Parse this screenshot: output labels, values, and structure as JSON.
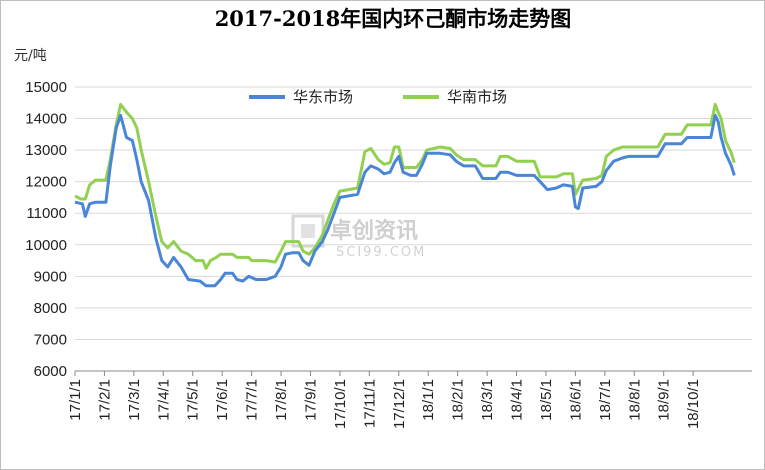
{
  "chart_data": {
    "type": "line",
    "title": "2017-2018年国内环己酮市场走势图",
    "unit_label": "元/吨",
    "ylim": [
      6000,
      15000
    ],
    "yticks": [
      6000,
      7000,
      8000,
      9000,
      10000,
      11000,
      12000,
      13000,
      14000,
      15000
    ],
    "xlim": [
      0,
      23
    ],
    "xtick_labels": [
      "17/1/1",
      "17/2/1",
      "17/3/1",
      "17/4/1",
      "17/5/1",
      "17/6/1",
      "17/7/1",
      "17/8/1",
      "17/9/1",
      "17/10/1",
      "17/11/1",
      "17/12/1",
      "18/1/1",
      "18/2/1",
      "18/3/1",
      "18/4/1",
      "18/5/1",
      "18/6/1",
      "18/7/1",
      "18/8/1",
      "18/9/1",
      "18/10/1"
    ],
    "legend_position": "top-center",
    "watermark": {
      "main": "卓创资讯",
      "sub": "SCI99.COM"
    },
    "series": [
      {
        "name": "华东市场",
        "color": "#4a86d8",
        "points": [
          [
            0.0,
            11350
          ],
          [
            0.25,
            11300
          ],
          [
            0.35,
            10900
          ],
          [
            0.5,
            11300
          ],
          [
            0.7,
            11350
          ],
          [
            1.05,
            11350
          ],
          [
            1.2,
            12500
          ],
          [
            1.4,
            13700
          ],
          [
            1.55,
            14100
          ],
          [
            1.75,
            13400
          ],
          [
            1.95,
            13300
          ],
          [
            2.1,
            12700
          ],
          [
            2.25,
            12000
          ],
          [
            2.5,
            11400
          ],
          [
            2.75,
            10200
          ],
          [
            2.95,
            9500
          ],
          [
            3.15,
            9300
          ],
          [
            3.35,
            9600
          ],
          [
            3.6,
            9300
          ],
          [
            3.85,
            8900
          ],
          [
            4.25,
            8850
          ],
          [
            4.45,
            8700
          ],
          [
            4.75,
            8700
          ],
          [
            4.95,
            8900
          ],
          [
            5.1,
            9100
          ],
          [
            5.35,
            9100
          ],
          [
            5.5,
            8900
          ],
          [
            5.7,
            8850
          ],
          [
            5.9,
            9000
          ],
          [
            6.15,
            8900
          ],
          [
            6.5,
            8900
          ],
          [
            6.8,
            9000
          ],
          [
            7.0,
            9300
          ],
          [
            7.15,
            9700
          ],
          [
            7.4,
            9750
          ],
          [
            7.6,
            9750
          ],
          [
            7.75,
            9500
          ],
          [
            7.95,
            9350
          ],
          [
            8.15,
            9800
          ],
          [
            8.4,
            10100
          ],
          [
            8.6,
            10500
          ],
          [
            8.8,
            11000
          ],
          [
            9.0,
            11500
          ],
          [
            9.3,
            11550
          ],
          [
            9.6,
            11600
          ],
          [
            9.85,
            12300
          ],
          [
            10.05,
            12500
          ],
          [
            10.3,
            12400
          ],
          [
            10.5,
            12250
          ],
          [
            10.7,
            12300
          ],
          [
            10.85,
            12600
          ],
          [
            11.0,
            12800
          ],
          [
            11.15,
            12300
          ],
          [
            11.4,
            12200
          ],
          [
            11.6,
            12200
          ],
          [
            11.8,
            12550
          ],
          [
            11.95,
            12900
          ],
          [
            12.4,
            12900
          ],
          [
            12.75,
            12850
          ],
          [
            12.95,
            12650
          ],
          [
            13.2,
            12500
          ],
          [
            13.6,
            12500
          ],
          [
            13.85,
            12100
          ],
          [
            14.3,
            12100
          ],
          [
            14.45,
            12300
          ],
          [
            14.7,
            12300
          ],
          [
            15.0,
            12200
          ],
          [
            15.6,
            12200
          ],
          [
            15.8,
            12000
          ],
          [
            16.05,
            11750
          ],
          [
            16.35,
            11800
          ],
          [
            16.6,
            11900
          ],
          [
            16.9,
            11850
          ],
          [
            17.0,
            11200
          ],
          [
            17.1,
            11150
          ],
          [
            17.25,
            11800
          ],
          [
            17.7,
            11850
          ],
          [
            17.9,
            12000
          ],
          [
            18.05,
            12350
          ],
          [
            18.3,
            12650
          ],
          [
            18.6,
            12750
          ],
          [
            18.8,
            12800
          ],
          [
            19.2,
            12800
          ],
          [
            19.8,
            12800
          ],
          [
            20.05,
            13200
          ],
          [
            20.6,
            13200
          ],
          [
            20.8,
            13400
          ],
          [
            21.6,
            13400
          ],
          [
            21.75,
            14100
          ],
          [
            21.85,
            13900
          ],
          [
            21.95,
            13400
          ],
          [
            22.1,
            12900
          ],
          [
            22.3,
            12500
          ],
          [
            22.4,
            12200
          ]
        ]
      },
      {
        "name": "华南市场",
        "color": "#92d050",
        "points": [
          [
            0.0,
            11550
          ],
          [
            0.2,
            11450
          ],
          [
            0.35,
            11450
          ],
          [
            0.5,
            11900
          ],
          [
            0.7,
            12050
          ],
          [
            1.05,
            12050
          ],
          [
            1.2,
            12700
          ],
          [
            1.4,
            13800
          ],
          [
            1.55,
            14450
          ],
          [
            1.75,
            14200
          ],
          [
            1.95,
            14000
          ],
          [
            2.1,
            13700
          ],
          [
            2.25,
            13000
          ],
          [
            2.5,
            12000
          ],
          [
            2.75,
            10900
          ],
          [
            2.95,
            10100
          ],
          [
            3.15,
            9900
          ],
          [
            3.35,
            10100
          ],
          [
            3.6,
            9800
          ],
          [
            3.85,
            9700
          ],
          [
            4.1,
            9500
          ],
          [
            4.35,
            9500
          ],
          [
            4.45,
            9250
          ],
          [
            4.6,
            9500
          ],
          [
            4.8,
            9600
          ],
          [
            4.95,
            9700
          ],
          [
            5.35,
            9700
          ],
          [
            5.5,
            9600
          ],
          [
            5.9,
            9600
          ],
          [
            6.0,
            9500
          ],
          [
            6.5,
            9500
          ],
          [
            6.8,
            9450
          ],
          [
            7.0,
            9800
          ],
          [
            7.15,
            10100
          ],
          [
            7.6,
            10100
          ],
          [
            7.75,
            9800
          ],
          [
            7.95,
            9700
          ],
          [
            8.15,
            9900
          ],
          [
            8.4,
            10300
          ],
          [
            8.6,
            10800
          ],
          [
            8.8,
            11300
          ],
          [
            9.0,
            11700
          ],
          [
            9.3,
            11750
          ],
          [
            9.6,
            11800
          ],
          [
            9.85,
            12950
          ],
          [
            10.05,
            13050
          ],
          [
            10.3,
            12700
          ],
          [
            10.5,
            12550
          ],
          [
            10.7,
            12600
          ],
          [
            10.85,
            13100
          ],
          [
            11.0,
            13100
          ],
          [
            11.15,
            12450
          ],
          [
            11.6,
            12450
          ],
          [
            11.8,
            12700
          ],
          [
            11.95,
            13000
          ],
          [
            12.4,
            13100
          ],
          [
            12.75,
            13050
          ],
          [
            12.95,
            12850
          ],
          [
            13.2,
            12700
          ],
          [
            13.6,
            12700
          ],
          [
            13.85,
            12500
          ],
          [
            14.3,
            12500
          ],
          [
            14.45,
            12800
          ],
          [
            14.7,
            12800
          ],
          [
            15.0,
            12650
          ],
          [
            15.6,
            12650
          ],
          [
            15.8,
            12150
          ],
          [
            16.35,
            12150
          ],
          [
            16.6,
            12250
          ],
          [
            16.9,
            12250
          ],
          [
            17.0,
            11600
          ],
          [
            17.25,
            12050
          ],
          [
            17.7,
            12100
          ],
          [
            17.9,
            12200
          ],
          [
            18.05,
            12800
          ],
          [
            18.3,
            13000
          ],
          [
            18.6,
            13100
          ],
          [
            19.2,
            13100
          ],
          [
            19.8,
            13100
          ],
          [
            20.05,
            13500
          ],
          [
            20.6,
            13500
          ],
          [
            20.8,
            13800
          ],
          [
            21.6,
            13800
          ],
          [
            21.75,
            14450
          ],
          [
            21.85,
            14200
          ],
          [
            21.95,
            14000
          ],
          [
            22.1,
            13300
          ],
          [
            22.3,
            12900
          ],
          [
            22.4,
            12600
          ]
        ]
      }
    ]
  }
}
